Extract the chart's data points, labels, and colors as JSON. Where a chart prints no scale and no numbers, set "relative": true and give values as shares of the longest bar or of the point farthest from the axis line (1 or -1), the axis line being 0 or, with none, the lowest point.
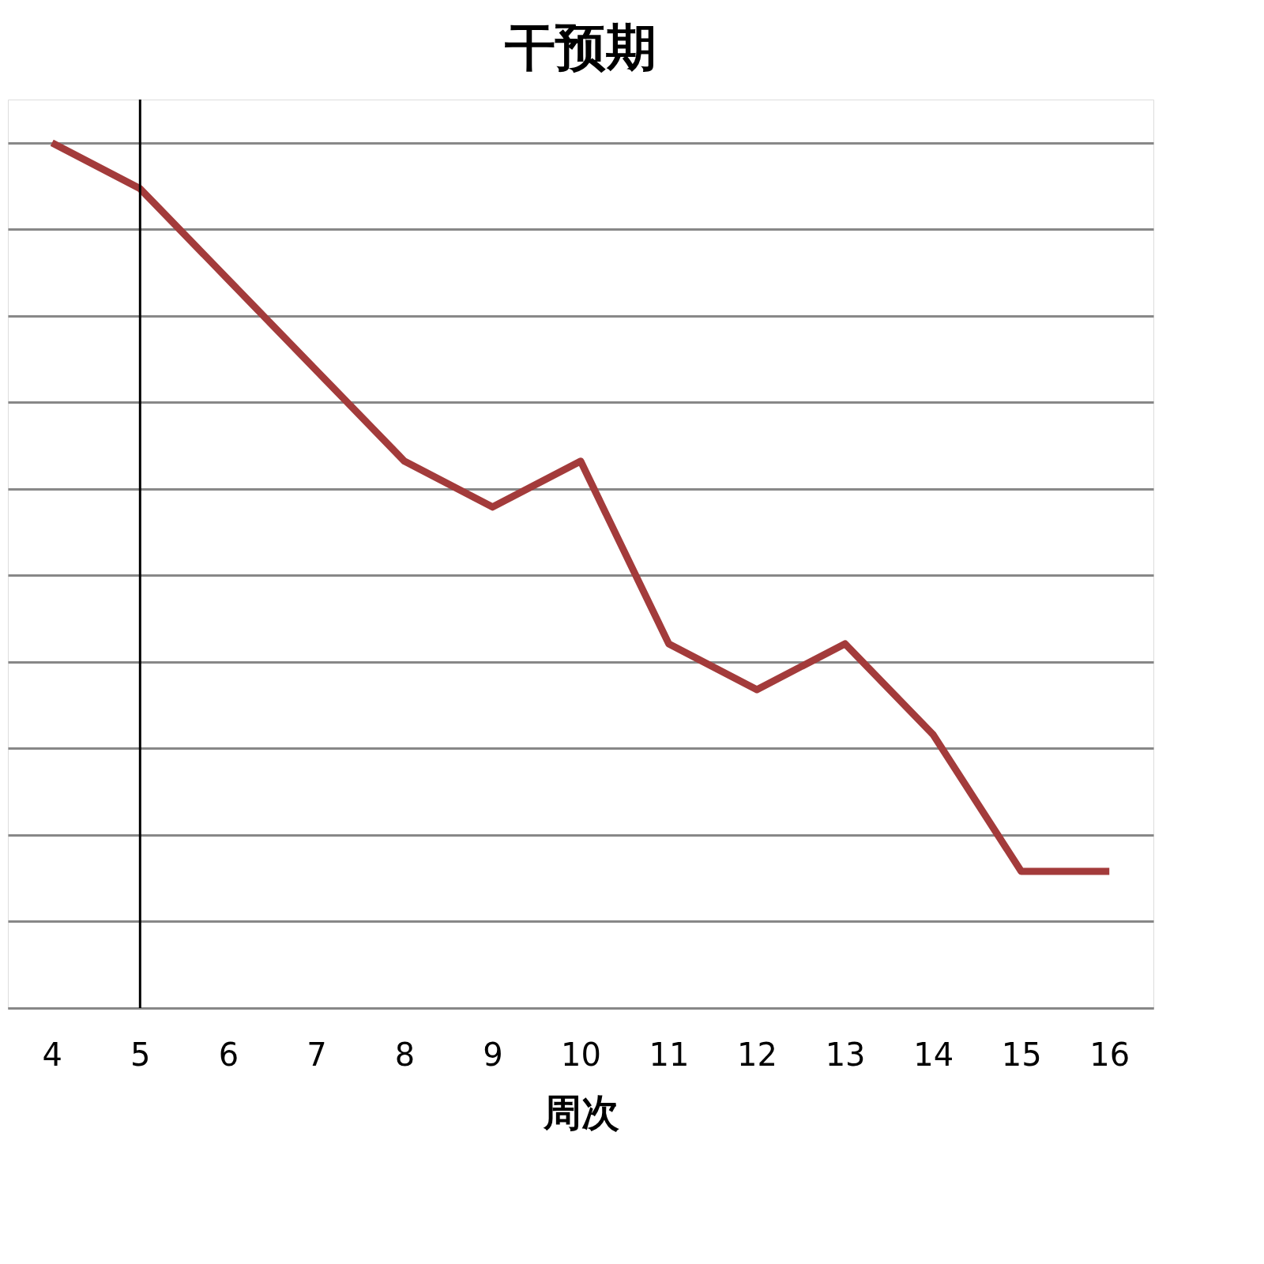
{
  "chart_data": {
    "type": "line",
    "title": "干预期",
    "xlabel": "周次",
    "relative": true,
    "categories": [
      "4",
      "5",
      "6",
      "7",
      "8",
      "9",
      "10",
      "11",
      "12",
      "13",
      "14",
      "15",
      "16"
    ],
    "series": [
      {
        "color": "#a33b3b",
        "values": [
          1,
          0.947,
          0.842,
          0.737,
          0.632,
          0.579,
          0.632,
          0.421,
          0.368,
          0.421,
          0.316,
          0.158,
          0.158
        ]
      }
    ],
    "ref_lines": [
      {
        "axis": "x",
        "value": "5",
        "color": "#000000"
      }
    ],
    "grid": "y",
    "marker": "none",
    "line_style": "solid"
  }
}
